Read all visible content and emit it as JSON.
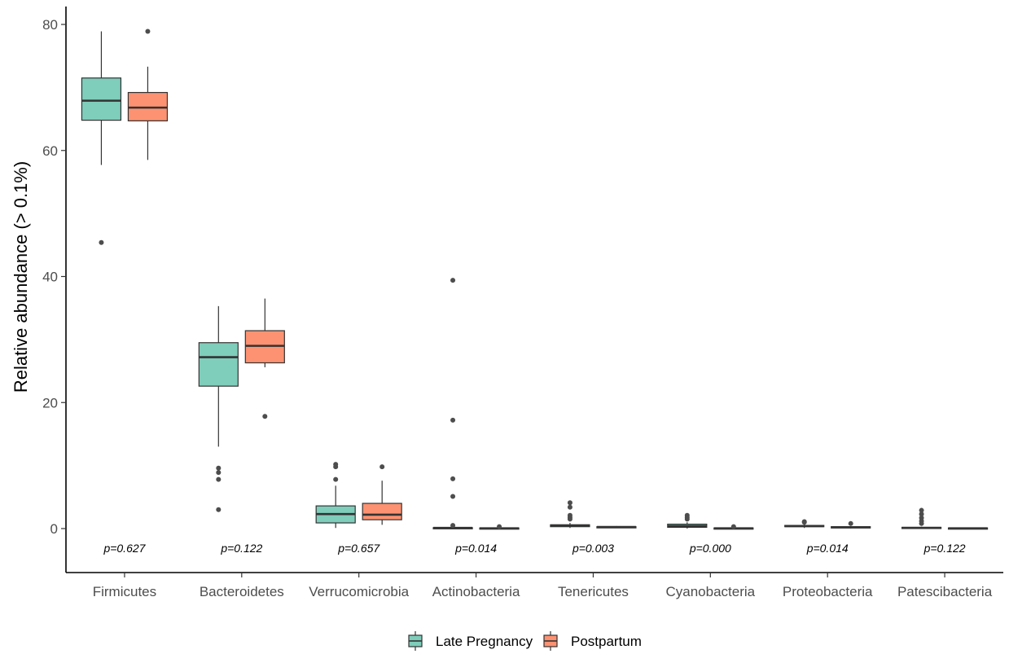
{
  "chart_data": {
    "type": "box",
    "ylabel": "Relative abundance (> 0.1%)",
    "xlabel": "",
    "ylim": [
      -3.5,
      82
    ],
    "yticks": [
      0,
      20,
      40,
      60,
      80
    ],
    "grid": false,
    "legend_position": "bottom",
    "categories": [
      "Firmicutes",
      "Bacteroidetes",
      "Verrucomicrobia",
      "Actinobacteria",
      "Tenericutes",
      "Cyanobacteria",
      "Proteobacteria",
      "Patescibacteria"
    ],
    "p_values": [
      "p=0.627",
      "p=0.122",
      "p=0.657",
      "p=0.014",
      "p=0.003",
      "p=0.000",
      "p=0.014",
      "p=0.122"
    ],
    "series": [
      {
        "name": "Late Pregnancy",
        "color": "#7fcdbb",
        "boxes": [
          {
            "whisker_low": 57.7,
            "q1": 64.8,
            "median": 67.9,
            "q3": 71.5,
            "whisker_high": 78.9,
            "outliers": [
              45.4
            ]
          },
          {
            "whisker_low": 13.0,
            "q1": 22.6,
            "median": 27.2,
            "q3": 29.5,
            "whisker_high": 35.3,
            "outliers": [
              9.6,
              8.9,
              7.8,
              3.0
            ]
          },
          {
            "whisker_low": 0.1,
            "q1": 0.9,
            "median": 2.3,
            "q3": 3.6,
            "whisker_high": 6.8,
            "outliers": [
              10.2,
              9.8,
              7.8
            ]
          },
          {
            "whisker_low": 0.0,
            "q1": 0.0,
            "median": 0.1,
            "q3": 0.15,
            "whisker_high": 0.3,
            "outliers": [
              39.4,
              17.2,
              7.9,
              5.1,
              0.5
            ]
          },
          {
            "whisker_low": 0.1,
            "q1": 0.3,
            "median": 0.5,
            "q3": 0.6,
            "whisker_high": 0.9,
            "outliers": [
              4.1,
              3.4,
              2.1,
              1.8,
              1.5
            ]
          },
          {
            "whisker_low": 0.0,
            "q1": 0.2,
            "median": 0.4,
            "q3": 0.7,
            "whisker_high": 1.0,
            "outliers": [
              2.1,
              1.8,
              1.5
            ]
          },
          {
            "whisker_low": 0.1,
            "q1": 0.3,
            "median": 0.4,
            "q3": 0.5,
            "whisker_high": 0.7,
            "outliers": [
              1.1,
              1.0
            ]
          },
          {
            "whisker_low": 0.0,
            "q1": 0.05,
            "median": 0.1,
            "q3": 0.2,
            "whisker_high": 0.3,
            "outliers": [
              2.9,
              2.3,
              1.7,
              1.2,
              0.8
            ]
          }
        ]
      },
      {
        "name": "Postpartum",
        "color": "#fc9272",
        "boxes": [
          {
            "whisker_low": 58.5,
            "q1": 64.7,
            "median": 66.8,
            "q3": 69.2,
            "whisker_high": 73.3,
            "outliers": [
              78.9
            ]
          },
          {
            "whisker_low": 25.6,
            "q1": 26.3,
            "median": 29.0,
            "q3": 31.4,
            "whisker_high": 36.5,
            "outliers": [
              17.8
            ]
          },
          {
            "whisker_low": 0.6,
            "q1": 1.4,
            "median": 2.2,
            "q3": 4.0,
            "whisker_high": 7.6,
            "outliers": [
              9.8
            ]
          },
          {
            "whisker_low": 0.0,
            "q1": 0.0,
            "median": 0.05,
            "q3": 0.1,
            "whisker_high": 0.2,
            "outliers": [
              0.3
            ]
          },
          {
            "whisker_low": 0.1,
            "q1": 0.2,
            "median": 0.25,
            "q3": 0.3,
            "whisker_high": 0.4,
            "outliers": []
          },
          {
            "whisker_low": 0.0,
            "q1": 0.0,
            "median": 0.05,
            "q3": 0.1,
            "whisker_high": 0.2,
            "outliers": [
              0.3
            ]
          },
          {
            "whisker_low": 0.0,
            "q1": 0.1,
            "median": 0.2,
            "q3": 0.3,
            "whisker_high": 0.4,
            "outliers": [
              0.8
            ]
          },
          {
            "whisker_low": 0.0,
            "q1": 0.0,
            "median": 0.05,
            "q3": 0.1,
            "whisker_high": 0.15,
            "outliers": []
          }
        ]
      }
    ]
  }
}
